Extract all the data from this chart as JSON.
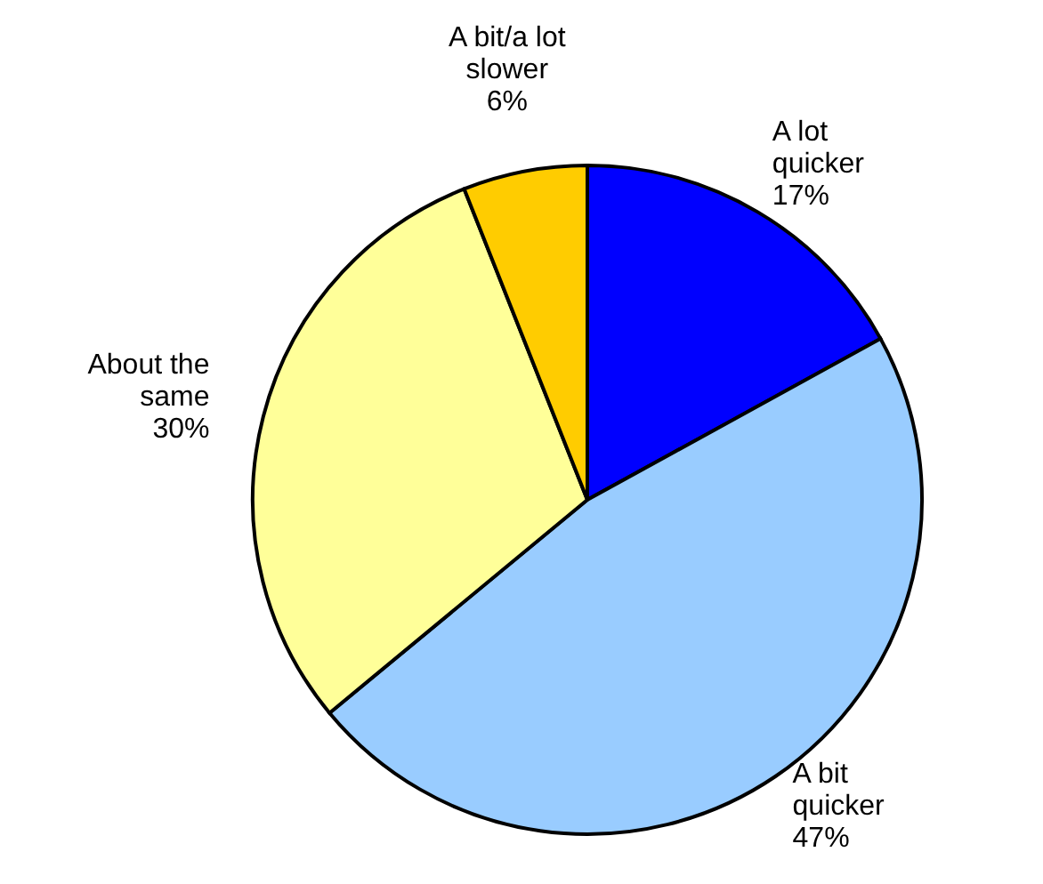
{
  "chart_data": {
    "type": "pie",
    "categories": [
      "A lot quicker",
      "A bit quicker",
      "About the same",
      "A bit/a lot slower"
    ],
    "values": [
      17,
      47,
      30,
      6
    ],
    "colors": [
      "#0000ff",
      "#99ccff",
      "#ffff99",
      "#ffcc00"
    ],
    "value_labels": [
      "17%",
      "47%",
      "30%",
      "6%"
    ],
    "legend": false
  }
}
